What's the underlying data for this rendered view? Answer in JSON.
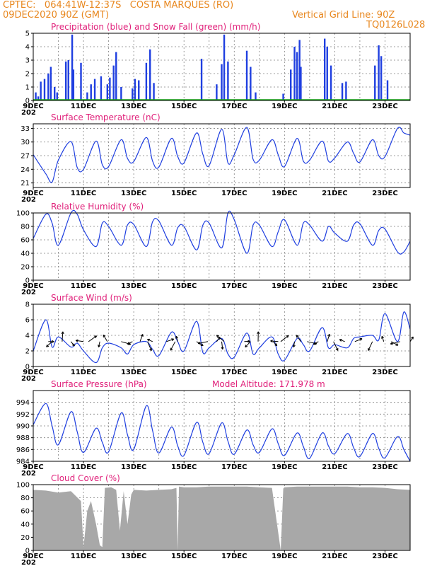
{
  "header": {
    "line1_left": "CPTEC:   064:41W-12:37S   COSTA MARQUES (RO)",
    "line2_left": "09DEC2020 90Z (GMT)",
    "line2_right": "Vertical Grid Line: 90Z",
    "line3_right": "TQ0126L028"
  },
  "colors": {
    "header": "#e8871e",
    "title": "#e0207a",
    "line": "#1f3fe0",
    "snow": "#10a010",
    "cloud": "#a8a8a8"
  },
  "x_ticks": [
    "9DEC",
    "11DEC",
    "13DEC",
    "15DEC",
    "17DEC",
    "19DEC",
    "21DEC",
    "23DEC"
  ],
  "x_prefix": "202",
  "chart_data": [
    {
      "type": "bar",
      "title": "Precipitation (blue) and Snow Fall (green) (mm/h)",
      "ylim": [
        0,
        5
      ],
      "yticks": [
        0,
        1,
        2,
        3,
        4,
        5
      ],
      "x_range_days": [
        9,
        24
      ],
      "series": [
        {
          "name": "Precipitation (blue)",
          "x": [
            9.1,
            9.2,
            9.3,
            9.45,
            9.6,
            9.7,
            9.85,
            9.95,
            10.3,
            10.4,
            10.55,
            10.6,
            10.9,
            11.15,
            11.3,
            11.45,
            11.7,
            11.95,
            12.05,
            12.2,
            12.3,
            12.5,
            12.95,
            13.05,
            13.2,
            13.5,
            13.65,
            13.8,
            15.7,
            16.3,
            16.5,
            16.6,
            16.75,
            17.5,
            17.65,
            17.85,
            18.95,
            19.25,
            19.4,
            19.5,
            19.6,
            19.65,
            20.6,
            20.7,
            20.85,
            21.3,
            21.45,
            22.6,
            22.75,
            22.85,
            23.1
          ],
          "values": [
            0.6,
            0.3,
            1.4,
            1.6,
            2.0,
            2.5,
            1.0,
            0.6,
            2.9,
            3.0,
            4.9,
            2.3,
            2.8,
            0.6,
            1.2,
            1.6,
            1.8,
            1.2,
            1.7,
            2.6,
            3.6,
            1.0,
            0.9,
            1.6,
            1.5,
            2.8,
            3.8,
            1.3,
            3.1,
            1.2,
            2.7,
            4.9,
            2.9,
            3.7,
            2.5,
            0.6,
            0.5,
            2.3,
            4.0,
            3.6,
            4.5,
            2.5,
            4.6,
            4.0,
            2.6,
            1.3,
            1.4,
            2.6,
            4.1,
            3.3,
            1.5
          ]
        },
        {
          "name": "Snow Fall (green)",
          "x": [
            9,
            24
          ],
          "values": [
            0,
            0
          ]
        }
      ]
    },
    {
      "type": "line",
      "title": "Surface Temperature (nC)",
      "ylim": [
        20,
        34
      ],
      "yticks": [
        21,
        24,
        27,
        30,
        33
      ],
      "x": [
        9,
        9.5,
        9.75,
        10.0,
        10.5,
        10.75,
        11.0,
        11.5,
        11.75,
        12.0,
        12.5,
        12.75,
        13.0,
        13.5,
        13.75,
        14.0,
        14.5,
        14.75,
        15.0,
        15.5,
        15.75,
        16.0,
        16.5,
        16.75,
        17.0,
        17.5,
        17.75,
        18.0,
        18.5,
        18.75,
        19.0,
        19.5,
        19.75,
        20.0,
        20.5,
        20.75,
        21.0,
        21.5,
        21.75,
        22.0,
        22.5,
        22.75,
        23.0,
        23.5,
        23.75,
        24.0
      ],
      "series": [
        {
          "values": [
            27.2,
            23.0,
            21.2,
            26.0,
            30.1,
            24.4,
            24.0,
            30.2,
            25.0,
            24.6,
            30.5,
            26.4,
            25.7,
            31.0,
            25.8,
            24.5,
            30.8,
            26.8,
            25.4,
            32.0,
            27.3,
            24.8,
            32.8,
            25.4,
            27.2,
            33.2,
            26.2,
            26.0,
            30.5,
            27.2,
            24.6,
            30.8,
            25.8,
            26.0,
            30.2,
            25.8,
            26.5,
            30.0,
            27.5,
            25.6,
            30.5,
            27.0,
            26.8,
            33.0,
            32.0,
            31.5
          ]
        }
      ]
    },
    {
      "type": "line",
      "title": "Relative Humidity (%)",
      "ylim": [
        0,
        100
      ],
      "yticks": [
        0,
        20,
        40,
        60,
        80,
        100
      ],
      "x": [
        9,
        9.5,
        9.75,
        10.0,
        10.5,
        10.75,
        11.0,
        11.5,
        11.75,
        12.0,
        12.5,
        12.75,
        13.0,
        13.5,
        13.75,
        14.0,
        14.5,
        14.75,
        15.0,
        15.5,
        15.75,
        16.0,
        16.5,
        16.75,
        17.0,
        17.5,
        17.75,
        18.0,
        18.5,
        18.75,
        19.0,
        19.5,
        19.75,
        20.0,
        20.5,
        20.75,
        21.0,
        21.5,
        21.75,
        22.0,
        22.5,
        22.75,
        23.0,
        23.5,
        23.75,
        24.0
      ],
      "series": [
        {
          "values": [
            62,
            98,
            85,
            52,
            100,
            98,
            75,
            50,
            85,
            80,
            52,
            82,
            83,
            50,
            87,
            88,
            52,
            78,
            80,
            45,
            82,
            85,
            48,
            100,
            90,
            40,
            82,
            82,
            50,
            72,
            90,
            52,
            85,
            82,
            58,
            80,
            70,
            58,
            82,
            84,
            52,
            74,
            76,
            42,
            42,
            58
          ]
        }
      ]
    },
    {
      "type": "line",
      "title": "Surface Wind (m/s)",
      "ylim": [
        0,
        8
      ],
      "yticks": [
        0,
        2,
        4,
        6,
        8
      ],
      "x": [
        9,
        9.5,
        9.75,
        10.0,
        10.5,
        10.75,
        11.0,
        11.5,
        11.75,
        12.0,
        12.5,
        12.75,
        13.0,
        13.5,
        13.75,
        14.0,
        14.5,
        14.75,
        15.0,
        15.5,
        15.75,
        16.0,
        16.5,
        16.75,
        17.0,
        17.5,
        17.75,
        18.0,
        18.5,
        18.75,
        19.0,
        19.5,
        19.75,
        20.0,
        20.5,
        20.75,
        21.0,
        21.5,
        21.75,
        22.0,
        22.5,
        22.75,
        23.0,
        23.5,
        23.75,
        24.0
      ],
      "series": [
        {
          "values": [
            2.0,
            6.0,
            2.5,
            3.8,
            2.5,
            3.0,
            2.0,
            0.5,
            2.4,
            3.0,
            2.4,
            1.6,
            2.8,
            3.2,
            2.2,
            1.4,
            4.4,
            3.2,
            2.0,
            5.8,
            1.8,
            2.4,
            3.6,
            1.6,
            1.2,
            4.3,
            1.6,
            2.4,
            3.8,
            1.6,
            0.8,
            3.6,
            2.8,
            2.0,
            5.0,
            2.4,
            2.8,
            2.4,
            3.6,
            3.8,
            4.0,
            3.4,
            6.8,
            3.2,
            7.0,
            4.8
          ]
        }
      ],
      "vectors_x": [
        9.6,
        9.75,
        10.15,
        10.5,
        11.0,
        11.2,
        11.65,
        11.95,
        12.5,
        12.95,
        13.25,
        13.55,
        13.75,
        14.3,
        14.65,
        14.75,
        15.5,
        15.95,
        16.3,
        16.5,
        16.6,
        17.4,
        17.65,
        17.95,
        18.55,
        18.75,
        18.85,
        19.4,
        19.65,
        19.9,
        20.35,
        20.7,
        20.95,
        21.4,
        21.8,
        22.5,
        22.95,
        23.25,
        23.6,
        24.0
      ]
    },
    {
      "type": "line",
      "title": "Surface Pressure (hPa)",
      "annotation": "Model Altitude: 171.978 m",
      "ylim": [
        984,
        996
      ],
      "yticks": [
        984,
        986,
        988,
        990,
        992,
        994
      ],
      "x": [
        9,
        9.5,
        9.75,
        10.0,
        10.5,
        10.75,
        11.0,
        11.5,
        11.75,
        12.0,
        12.5,
        12.75,
        13.0,
        13.5,
        13.75,
        14.0,
        14.5,
        14.75,
        15.0,
        15.5,
        15.75,
        16.0,
        16.5,
        16.75,
        17.0,
        17.5,
        17.75,
        18.0,
        18.5,
        18.75,
        19.0,
        19.5,
        19.75,
        20.0,
        20.5,
        20.75,
        21.0,
        21.5,
        21.75,
        22.0,
        22.5,
        22.75,
        23.0,
        23.5,
        23.75,
        24.0
      ],
      "series": [
        {
          "values": [
            990.2,
            993.8,
            990.0,
            986.8,
            992.4,
            989.0,
            985.5,
            989.6,
            987.2,
            985.6,
            992.2,
            988.5,
            986.0,
            993.4,
            989.2,
            985.4,
            989.8,
            986.6,
            985.0,
            990.6,
            987.2,
            985.3,
            990.5,
            987.4,
            985.2,
            989.3,
            986.8,
            985.5,
            989.5,
            987.0,
            985.0,
            988.8,
            986.5,
            984.5,
            988.8,
            986.6,
            985.3,
            988.7,
            986.3,
            984.8,
            988.7,
            986.2,
            984.6,
            988.2,
            986.0,
            984.0
          ]
        }
      ]
    },
    {
      "type": "area",
      "title": "Cloud Cover (%)",
      "ylim": [
        0,
        100
      ],
      "yticks": [
        0,
        20,
        40,
        60,
        80,
        100
      ],
      "x": [
        9,
        9.5,
        10.0,
        10.5,
        10.9,
        11.0,
        11.15,
        11.3,
        11.5,
        11.65,
        11.75,
        11.85,
        12.1,
        12.3,
        12.45,
        12.6,
        12.75,
        12.9,
        13.0,
        13.5,
        14.0,
        14.5,
        14.7,
        14.75,
        14.8,
        15.0,
        15.5,
        16.0,
        16.5,
        17.0,
        17.5,
        18.0,
        18.5,
        18.85,
        18.95,
        19.0,
        19.5,
        20.0,
        20.5,
        21.0,
        21.5,
        22.0,
        22.5,
        23.0,
        23.5,
        24.0
      ],
      "series": [
        {
          "values": [
            92,
            91,
            88,
            90,
            75,
            5,
            60,
            75,
            40,
            8,
            5,
            95,
            96,
            92,
            30,
            90,
            40,
            85,
            92,
            91,
            92,
            93,
            95,
            0,
            97,
            96,
            96,
            97,
            97,
            97,
            97,
            96,
            95,
            0,
            94,
            96,
            97,
            97,
            97,
            97,
            97,
            96,
            96,
            95,
            93,
            92
          ]
        }
      ]
    }
  ]
}
